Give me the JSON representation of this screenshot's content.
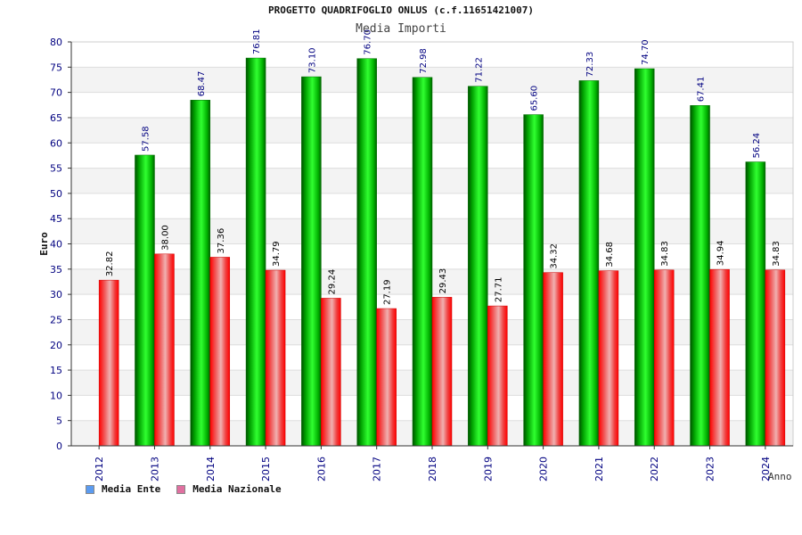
{
  "chart_data": {
    "type": "bar",
    "title": "PROGETTO QUADRIFOGLIO ONLUS (c.f.11651421007)",
    "subtitle": "Media Importi",
    "xlabel": "Anno",
    "ylabel": "Euro",
    "ylim": [
      0,
      80
    ],
    "yticks": [
      0,
      5,
      10,
      15,
      20,
      25,
      30,
      35,
      40,
      45,
      50,
      55,
      60,
      65,
      70,
      75,
      80
    ],
    "categories": [
      "2012",
      "2013",
      "2014",
      "2015",
      "2016",
      "2017",
      "2018",
      "2019",
      "2020",
      "2021",
      "2022",
      "2023",
      "2024"
    ],
    "series": [
      {
        "name": "Media Ente",
        "color": "#00c000",
        "values": [
          null,
          57.58,
          68.47,
          76.81,
          73.1,
          76.7,
          72.98,
          71.22,
          65.6,
          72.33,
          74.7,
          67.41,
          56.24
        ],
        "labels": [
          "",
          "57.58",
          "68.47",
          "76.81",
          "73.10",
          "76.70",
          "72.98",
          "71.22",
          "65.60",
          "72.33",
          "74.70",
          "67.41",
          "56.24"
        ]
      },
      {
        "name": "Media Nazionale",
        "color": "#ff0000",
        "values": [
          32.82,
          38.0,
          37.36,
          34.79,
          29.24,
          27.19,
          29.43,
          27.71,
          34.32,
          34.68,
          34.83,
          34.94,
          34.83
        ],
        "labels": [
          "32.82",
          "38.00",
          "37.36",
          "34.79",
          "29.24",
          "27.19",
          "29.43",
          "27.71",
          "34.32",
          "34.68",
          "34.83",
          "34.94",
          "34.83"
        ]
      }
    ],
    "legend": [
      {
        "name": "Media Ente",
        "color": "#5b9bf0"
      },
      {
        "name": "Media Nazionale",
        "color": "#e070a0"
      }
    ],
    "grid": true,
    "legend_position": "bottom-left"
  }
}
